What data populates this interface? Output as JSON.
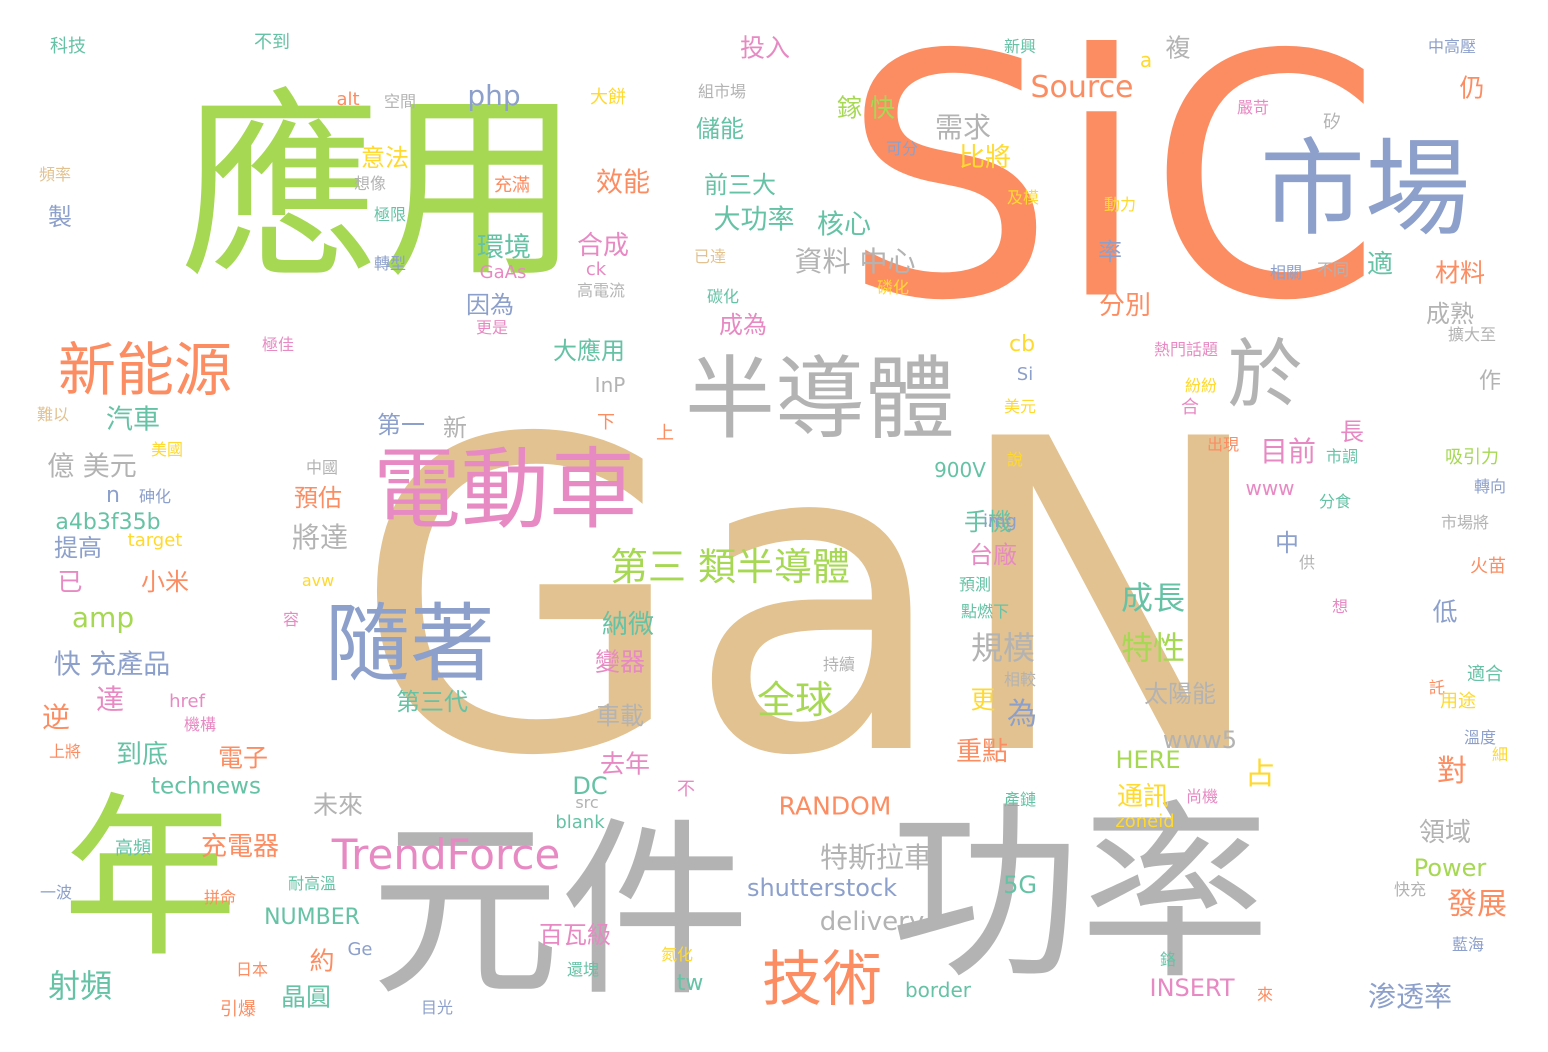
{
  "colors": {
    "tan": "#e2c290",
    "orange": "#fc8d62",
    "green": "#a6d854",
    "blue": "#8da0cb",
    "pink": "#e78ac3",
    "gray": "#b3b3b3",
    "teal": "#66c2a5",
    "yellow": "#ffd92f"
  },
  "words": [
    {
      "text": "GaN",
      "color": "tan"
    },
    {
      "text": "SiC",
      "color": "orange"
    },
    {
      "text": "應用",
      "color": "green"
    },
    {
      "text": "元件",
      "color": "gray"
    },
    {
      "text": "功率",
      "color": "gray"
    },
    {
      "text": "年",
      "color": "green"
    },
    {
      "text": "市場",
      "color": "blue"
    },
    {
      "text": "半導體",
      "color": "gray"
    },
    {
      "text": "電動車",
      "color": "pink"
    },
    {
      "text": "隨著",
      "color": "blue"
    },
    {
      "text": "新能源",
      "color": "orange"
    },
    {
      "text": "於",
      "color": "gray"
    },
    {
      "text": "技術",
      "color": "orange"
    },
    {
      "text": "TrendForce",
      "color": "pink"
    },
    {
      "text": "第三 類半導體",
      "color": "green"
    },
    {
      "text": "全球",
      "color": "green"
    },
    {
      "text": "Source",
      "color": "orange"
    },
    {
      "text": "php",
      "color": "blue"
    },
    {
      "text": "規模",
      "color": "gray"
    },
    {
      "text": "成長",
      "color": "teal"
    },
    {
      "text": "特性",
      "color": "green"
    },
    {
      "text": "特斯拉車",
      "color": "gray"
    },
    {
      "text": "shutterstock",
      "color": "blue"
    },
    {
      "text": "delivery",
      "color": "gray"
    },
    {
      "text": "RANDOM",
      "color": "orange"
    },
    {
      "text": "資料 中心",
      "color": "gray"
    },
    {
      "text": "大功率",
      "color": "teal"
    },
    {
      "text": "核心",
      "color": "teal"
    },
    {
      "text": "需求",
      "color": "gray"
    },
    {
      "text": "比將",
      "color": "yellow"
    },
    {
      "text": "儲能",
      "color": "teal"
    },
    {
      "text": "前三大",
      "color": "teal"
    },
    {
      "text": "效能",
      "color": "orange"
    },
    {
      "text": "投入",
      "color": "pink"
    },
    {
      "text": "鎵 快",
      "color": "green"
    },
    {
      "text": "環境",
      "color": "teal"
    },
    {
      "text": "合成",
      "color": "pink"
    },
    {
      "text": "因為",
      "color": "blue"
    },
    {
      "text": "大應用",
      "color": "teal"
    },
    {
      "text": "成為",
      "color": "pink"
    },
    {
      "text": "目前",
      "color": "pink"
    },
    {
      "text": "占",
      "color": "yellow"
    },
    {
      "text": "新",
      "color": "gray"
    },
    {
      "text": "第一",
      "color": "blue"
    },
    {
      "text": "汽車",
      "color": "teal"
    },
    {
      "text": "億 美元",
      "color": "gray"
    },
    {
      "text": "預估",
      "color": "orange"
    },
    {
      "text": "將達",
      "color": "gray"
    },
    {
      "text": "手機",
      "color": "teal"
    },
    {
      "text": "台廠",
      "color": "pink"
    },
    {
      "text": "小米",
      "color": "orange"
    },
    {
      "text": "amp",
      "color": "green"
    },
    {
      "text": "快 充產品",
      "color": "blue"
    },
    {
      "text": "達",
      "color": "pink"
    },
    {
      "text": "第三代",
      "color": "teal"
    },
    {
      "text": "逆",
      "color": "orange"
    },
    {
      "text": "到底",
      "color": "teal"
    },
    {
      "text": "電子",
      "color": "orange"
    },
    {
      "text": "technews",
      "color": "teal"
    },
    {
      "text": "未來",
      "color": "gray"
    },
    {
      "text": "充電器",
      "color": "orange"
    },
    {
      "text": "射頻",
      "color": "teal"
    },
    {
      "text": "晶圓",
      "color": "teal"
    },
    {
      "text": "約",
      "color": "orange"
    },
    {
      "text": "NUMBER",
      "color": "teal"
    },
    {
      "text": "百瓦級",
      "color": "pink"
    },
    {
      "text": "tw",
      "color": "teal"
    },
    {
      "text": "border",
      "color": "teal"
    },
    {
      "text": "INSERT",
      "color": "pink"
    },
    {
      "text": "渗透率",
      "color": "blue"
    },
    {
      "text": "發展",
      "color": "orange"
    },
    {
      "text": "Power",
      "color": "green"
    },
    {
      "text": "領域",
      "color": "gray"
    },
    {
      "text": "5G",
      "color": "teal"
    },
    {
      "text": "通訊",
      "color": "yellow"
    },
    {
      "text": "HERE",
      "color": "green"
    },
    {
      "text": "www5",
      "color": "gray"
    },
    {
      "text": "zoneid",
      "color": "yellow"
    },
    {
      "text": "對",
      "color": "orange"
    },
    {
      "text": "重點",
      "color": "orange"
    },
    {
      "text": "為",
      "color": "blue"
    },
    {
      "text": "更",
      "color": "yellow"
    },
    {
      "text": "太陽能",
      "color": "gray"
    },
    {
      "text": "www",
      "color": "pink"
    },
    {
      "text": "img",
      "color": "blue"
    },
    {
      "text": "900V",
      "color": "teal"
    },
    {
      "text": "cb",
      "color": "yellow"
    },
    {
      "text": "InP",
      "color": "gray"
    },
    {
      "text": "Si",
      "color": "blue"
    },
    {
      "text": "分別",
      "color": "orange"
    },
    {
      "text": "材料",
      "color": "orange"
    },
    {
      "text": "適",
      "color": "teal"
    },
    {
      "text": "率",
      "color": "blue"
    },
    {
      "text": "成熟",
      "color": "gray"
    },
    {
      "text": "仍",
      "color": "orange"
    },
    {
      "text": "複",
      "color": "gray"
    },
    {
      "text": "a",
      "color": "yellow"
    },
    {
      "text": "變器",
      "color": "pink"
    },
    {
      "text": "納微",
      "color": "teal"
    },
    {
      "text": "車載",
      "color": "gray"
    },
    {
      "text": "去年",
      "color": "pink"
    },
    {
      "text": "DC",
      "color": "teal"
    },
    {
      "text": "a4b3f35b",
      "color": "teal"
    },
    {
      "text": "提高",
      "color": "blue"
    },
    {
      "text": "已",
      "color": "pink"
    },
    {
      "text": "target",
      "color": "yellow"
    },
    {
      "text": "n",
      "color": "blue"
    },
    {
      "text": "低",
      "color": "blue"
    },
    {
      "text": "中",
      "color": "blue"
    },
    {
      "text": "長",
      "color": "pink"
    },
    {
      "text": "作",
      "color": "gray"
    },
    {
      "text": "意法",
      "color": "yellow"
    },
    {
      "text": "製",
      "color": "blue"
    },
    {
      "text": "科技",
      "color": "teal"
    },
    {
      "text": "不到",
      "color": "teal"
    },
    {
      "text": "alt",
      "color": "orange"
    },
    {
      "text": "空間",
      "color": "gray"
    },
    {
      "text": "頻率",
      "color": "tan"
    },
    {
      "text": "想像",
      "color": "gray"
    },
    {
      "text": "極限",
      "color": "teal"
    },
    {
      "text": "轉型",
      "color": "blue"
    },
    {
      "text": "充滿",
      "color": "orange"
    },
    {
      "text": "大餅",
      "color": "yellow"
    },
    {
      "text": "GaAs",
      "color": "pink"
    },
    {
      "text": "ck",
      "color": "pink"
    },
    {
      "text": "高電流",
      "color": "gray"
    },
    {
      "text": "更是",
      "color": "pink"
    },
    {
      "text": "極佳",
      "color": "pink"
    },
    {
      "text": "難以",
      "color": "tan"
    },
    {
      "text": "美國",
      "color": "yellow"
    },
    {
      "text": "砷化",
      "color": "blue"
    },
    {
      "text": "href",
      "color": "pink"
    },
    {
      "text": "機構",
      "color": "pink"
    },
    {
      "text": "上將",
      "color": "orange"
    },
    {
      "text": "avw",
      "color": "yellow"
    },
    {
      "text": "容",
      "color": "pink"
    },
    {
      "text": "高頻",
      "color": "teal"
    },
    {
      "text": "一波",
      "color": "blue"
    },
    {
      "text": "拼命",
      "color": "orange"
    },
    {
      "text": "耐高溫",
      "color": "teal"
    },
    {
      "text": "日本",
      "color": "orange"
    },
    {
      "text": "引爆",
      "color": "orange"
    },
    {
      "text": "目光",
      "color": "blue"
    },
    {
      "text": "Ge",
      "color": "blue"
    },
    {
      "text": "blank",
      "color": "teal"
    },
    {
      "text": "src",
      "color": "gray"
    },
    {
      "text": "不",
      "color": "pink"
    },
    {
      "text": "氮化",
      "color": "yellow"
    },
    {
      "text": "還塊",
      "color": "teal"
    },
    {
      "text": "持續",
      "color": "gray"
    },
    {
      "text": "相較",
      "color": "gray"
    },
    {
      "text": "點燃下",
      "color": "teal"
    },
    {
      "text": "預測",
      "color": "teal"
    },
    {
      "text": "下",
      "color": "orange"
    },
    {
      "text": "上",
      "color": "orange"
    },
    {
      "text": "中國",
      "color": "gray"
    },
    {
      "text": "說",
      "color": "yellow"
    },
    {
      "text": "美元",
      "color": "yellow"
    },
    {
      "text": "合",
      "color": "pink"
    },
    {
      "text": "出現",
      "color": "orange"
    },
    {
      "text": "紛紛",
      "color": "yellow"
    },
    {
      "text": "熱門話題",
      "color": "pink"
    },
    {
      "text": "市調",
      "color": "teal"
    },
    {
      "text": "分食",
      "color": "teal"
    },
    {
      "text": "供",
      "color": "gray"
    },
    {
      "text": "想",
      "color": "pink"
    },
    {
      "text": "託",
      "color": "orange"
    },
    {
      "text": "產鏈",
      "color": "teal"
    },
    {
      "text": "尚機",
      "color": "pink"
    },
    {
      "text": "鉻",
      "color": "teal"
    },
    {
      "text": "來",
      "color": "orange"
    },
    {
      "text": "快充",
      "color": "gray"
    },
    {
      "text": "藍海",
      "color": "blue"
    },
    {
      "text": "細",
      "color": "yellow"
    },
    {
      "text": "溫度",
      "color": "blue"
    },
    {
      "text": "用途",
      "color": "yellow"
    },
    {
      "text": "適合",
      "color": "teal"
    },
    {
      "text": "火苗",
      "color": "orange"
    },
    {
      "text": "市場將",
      "color": "gray"
    },
    {
      "text": "轉向",
      "color": "blue"
    },
    {
      "text": "吸引力",
      "color": "green"
    },
    {
      "text": "擴大至",
      "color": "gray"
    },
    {
      "text": "相關",
      "color": "blue"
    },
    {
      "text": "不同",
      "color": "gray"
    },
    {
      "text": "動力",
      "color": "yellow"
    },
    {
      "text": "及模",
      "color": "yellow"
    },
    {
      "text": "可分",
      "color": "blue"
    },
    {
      "text": "矽",
      "color": "gray"
    },
    {
      "text": "嚴苛",
      "color": "pink"
    },
    {
      "text": "中高壓",
      "color": "blue"
    },
    {
      "text": "新興",
      "color": "teal"
    },
    {
      "text": "組市場",
      "color": "gray"
    },
    {
      "text": "已達",
      "color": "tan"
    },
    {
      "text": "碳化",
      "color": "teal"
    },
    {
      "text": "磷化",
      "color": "yellow"
    }
  ]
}
